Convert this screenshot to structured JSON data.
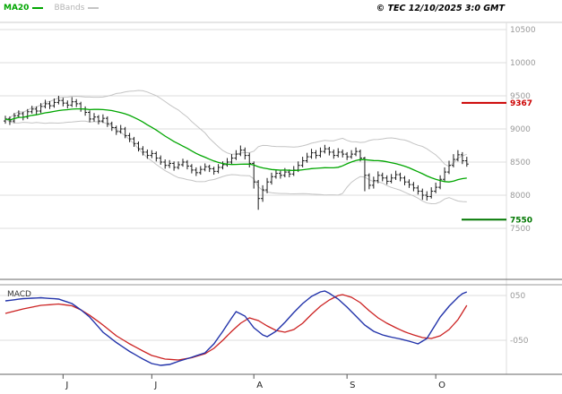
{
  "header": {
    "ma20_label": "MA20",
    "bbands_label": "BBands",
    "copyright": "© TEC 12/10/2025 3:0 GMT"
  },
  "colors": {
    "grid": "#dcdcdc",
    "axis_text": "#999999",
    "bars": "#1a1a1a",
    "ma20": "#00a600",
    "bands": "#c4c4c4",
    "macd_line": "#2233aa",
    "macd_signal": "#cc2222",
    "resistance": "#cc0000",
    "support": "#007700",
    "panel_border": "#666666"
  },
  "price_axis": {
    "levels": [
      {
        "value": 10500,
        "label": "10500"
      },
      {
        "value": 10000,
        "label": "10000"
      },
      {
        "value": 9500,
        "label": "9500"
      },
      {
        "value": 9000,
        "label": "9000"
      },
      {
        "value": 8500,
        "label": "8500"
      },
      {
        "value": 8000,
        "label": "8000"
      },
      {
        "value": 7500,
        "label": "7500"
      }
    ],
    "markers": [
      {
        "name": "resistance",
        "value": 9367,
        "label": "9367",
        "color": "#cc0000"
      },
      {
        "name": "support",
        "value": 7550,
        "label": "7550",
        "color": "#007700"
      }
    ]
  },
  "macd_panel": {
    "label": "MACD",
    "levels": [
      {
        "value": 0.5,
        "label": "050"
      },
      {
        "value": -0.5,
        "label": "-050"
      }
    ]
  },
  "x_axis": {
    "ticks": [
      {
        "index": 13,
        "label": "J"
      },
      {
        "index": 33,
        "label": "J"
      },
      {
        "index": 56,
        "label": "A"
      },
      {
        "index": 77,
        "label": "S"
      },
      {
        "index": 97,
        "label": "O"
      }
    ]
  },
  "chart_data": {
    "type": "candlestick",
    "title": "",
    "legend": [
      "MA20",
      "BBands"
    ],
    "x_tick_labels": [
      "J",
      "J",
      "A",
      "S",
      "O"
    ],
    "y_tick_labels": [
      "10500",
      "10000",
      "9500",
      "9000",
      "8500",
      "8000",
      "7500"
    ],
    "ylim": [
      7500,
      10500
    ],
    "resistance_level": 9367,
    "support_level": 7550,
    "indicators": {
      "ma20_period": 20,
      "bbands_period": 20,
      "bbands_stddev": 2
    },
    "ohlc": [
      [
        9120,
        9200,
        9080,
        9150
      ],
      [
        9150,
        9190,
        9060,
        9120
      ],
      [
        9120,
        9240,
        9090,
        9200
      ],
      [
        9200,
        9280,
        9170,
        9230
      ],
      [
        9230,
        9260,
        9130,
        9180
      ],
      [
        9180,
        9300,
        9150,
        9260
      ],
      [
        9260,
        9350,
        9230,
        9300
      ],
      [
        9300,
        9340,
        9220,
        9270
      ],
      [
        9270,
        9390,
        9240,
        9340
      ],
      [
        9340,
        9440,
        9310,
        9380
      ],
      [
        9380,
        9420,
        9300,
        9350
      ],
      [
        9350,
        9460,
        9320,
        9400
      ],
      [
        9400,
        9500,
        9370,
        9430
      ],
      [
        9430,
        9470,
        9340,
        9390
      ],
      [
        9390,
        9430,
        9310,
        9360
      ],
      [
        9360,
        9480,
        9330,
        9410
      ],
      [
        9410,
        9450,
        9330,
        9380
      ],
      [
        9380,
        9410,
        9260,
        9300
      ],
      [
        9300,
        9340,
        9200,
        9250
      ],
      [
        9250,
        9280,
        9100,
        9150
      ],
      [
        9150,
        9240,
        9110,
        9180
      ],
      [
        9180,
        9210,
        9070,
        9120
      ],
      [
        9120,
        9220,
        9090,
        9160
      ],
      [
        9160,
        9190,
        9030,
        9080
      ],
      [
        9080,
        9110,
        8970,
        9020
      ],
      [
        9020,
        9050,
        8910,
        8960
      ],
      [
        8960,
        9060,
        8930,
        9000
      ],
      [
        9000,
        9030,
        8860,
        8900
      ],
      [
        8900,
        8940,
        8800,
        8850
      ],
      [
        8850,
        8880,
        8730,
        8780
      ],
      [
        8780,
        8810,
        8660,
        8700
      ],
      [
        8700,
        8740,
        8600,
        8650
      ],
      [
        8650,
        8690,
        8550,
        8600
      ],
      [
        8600,
        8680,
        8560,
        8630
      ],
      [
        8630,
        8660,
        8510,
        8560
      ],
      [
        8560,
        8600,
        8460,
        8500
      ],
      [
        8500,
        8540,
        8400,
        8450
      ],
      [
        8450,
        8530,
        8410,
        8480
      ],
      [
        8480,
        8510,
        8370,
        8420
      ],
      [
        8420,
        8510,
        8390,
        8460
      ],
      [
        8460,
        8550,
        8430,
        8500
      ],
      [
        8500,
        8530,
        8390,
        8440
      ],
      [
        8440,
        8470,
        8330,
        8380
      ],
      [
        8380,
        8420,
        8290,
        8340
      ],
      [
        8340,
        8440,
        8310,
        8390
      ],
      [
        8390,
        8480,
        8360,
        8430
      ],
      [
        8430,
        8460,
        8350,
        8400
      ],
      [
        8400,
        8430,
        8310,
        8360
      ],
      [
        8360,
        8470,
        8330,
        8420
      ],
      [
        8420,
        8510,
        8390,
        8460
      ],
      [
        8460,
        8560,
        8430,
        8500
      ],
      [
        8500,
        8620,
        8470,
        8560
      ],
      [
        8560,
        8680,
        8530,
        8620
      ],
      [
        8620,
        8750,
        8590,
        8680
      ],
      [
        8680,
        8720,
        8540,
        8600
      ],
      [
        8600,
        8640,
        8420,
        8480
      ],
      [
        8480,
        8510,
        8100,
        8200
      ],
      [
        8200,
        8230,
        7780,
        7950
      ],
      [
        7950,
        8150,
        7900,
        8080
      ],
      [
        8080,
        8260,
        8030,
        8200
      ],
      [
        8200,
        8340,
        8160,
        8280
      ],
      [
        8280,
        8390,
        8250,
        8330
      ],
      [
        8330,
        8370,
        8250,
        8300
      ],
      [
        8300,
        8410,
        8270,
        8350
      ],
      [
        8350,
        8390,
        8270,
        8320
      ],
      [
        8320,
        8440,
        8290,
        8380
      ],
      [
        8380,
        8510,
        8350,
        8450
      ],
      [
        8450,
        8580,
        8420,
        8520
      ],
      [
        8520,
        8640,
        8490,
        8580
      ],
      [
        8580,
        8700,
        8550,
        8640
      ],
      [
        8640,
        8680,
        8550,
        8600
      ],
      [
        8600,
        8720,
        8570,
        8660
      ],
      [
        8660,
        8760,
        8630,
        8700
      ],
      [
        8700,
        8730,
        8600,
        8650
      ],
      [
        8650,
        8690,
        8550,
        8600
      ],
      [
        8600,
        8710,
        8570,
        8650
      ],
      [
        8650,
        8690,
        8570,
        8620
      ],
      [
        8620,
        8650,
        8530,
        8580
      ],
      [
        8580,
        8680,
        8550,
        8620
      ],
      [
        8620,
        8720,
        8590,
        8660
      ],
      [
        8660,
        8690,
        8510,
        8560
      ],
      [
        8560,
        8580,
        8060,
        8300
      ],
      [
        8300,
        8330,
        8090,
        8150
      ],
      [
        8150,
        8280,
        8100,
        8220
      ],
      [
        8220,
        8360,
        8180,
        8300
      ],
      [
        8300,
        8340,
        8210,
        8260
      ],
      [
        8260,
        8300,
        8160,
        8210
      ],
      [
        8210,
        8320,
        8180,
        8260
      ],
      [
        8260,
        8370,
        8230,
        8310
      ],
      [
        8310,
        8340,
        8210,
        8260
      ],
      [
        8260,
        8290,
        8150,
        8200
      ],
      [
        8200,
        8240,
        8110,
        8160
      ],
      [
        8160,
        8200,
        8060,
        8110
      ],
      [
        8110,
        8150,
        8010,
        8060
      ],
      [
        8060,
        8100,
        7930,
        8000
      ],
      [
        8000,
        8060,
        7920,
        7980
      ],
      [
        7980,
        8120,
        7950,
        8060
      ],
      [
        8060,
        8190,
        8030,
        8120
      ],
      [
        8120,
        8300,
        8090,
        8240
      ],
      [
        8240,
        8420,
        8210,
        8350
      ],
      [
        8350,
        8520,
        8320,
        8450
      ],
      [
        8450,
        8620,
        8420,
        8540
      ],
      [
        8540,
        8680,
        8510,
        8610
      ],
      [
        8610,
        8650,
        8470,
        8520
      ],
      [
        8520,
        8580,
        8430,
        8470
      ]
    ],
    "macd": {
      "ylim": [
        -1.3,
        0.8
      ],
      "gridlines": [
        0.5,
        -0.5
      ],
      "line_keypoints": [
        [
          0,
          0.38
        ],
        [
          4,
          0.43
        ],
        [
          8,
          0.45
        ],
        [
          12,
          0.42
        ],
        [
          15,
          0.32
        ],
        [
          17,
          0.18
        ],
        [
          19,
          0.02
        ],
        [
          22,
          -0.32
        ],
        [
          25,
          -0.55
        ],
        [
          28,
          -0.75
        ],
        [
          31,
          -0.92
        ],
        [
          33,
          -1.02
        ],
        [
          35,
          -1.06
        ],
        [
          37,
          -1.04
        ],
        [
          39,
          -0.97
        ],
        [
          42,
          -0.88
        ],
        [
          45,
          -0.78
        ],
        [
          47,
          -0.58
        ],
        [
          49,
          -0.3
        ],
        [
          51,
          0.0
        ],
        [
          52,
          0.14
        ],
        [
          54,
          0.04
        ],
        [
          56,
          -0.22
        ],
        [
          58,
          -0.38
        ],
        [
          59,
          -0.42
        ],
        [
          61,
          -0.3
        ],
        [
          63,
          -0.1
        ],
        [
          65,
          0.12
        ],
        [
          67,
          0.32
        ],
        [
          69,
          0.48
        ],
        [
          71,
          0.58
        ],
        [
          72,
          0.6
        ],
        [
          73,
          0.55
        ],
        [
          75,
          0.42
        ],
        [
          77,
          0.24
        ],
        [
          79,
          0.04
        ],
        [
          81,
          -0.16
        ],
        [
          83,
          -0.3
        ],
        [
          85,
          -0.38
        ],
        [
          87,
          -0.43
        ],
        [
          89,
          -0.47
        ],
        [
          91,
          -0.52
        ],
        [
          93,
          -0.58
        ],
        [
          95,
          -0.46
        ],
        [
          96,
          -0.3
        ],
        [
          97,
          -0.14
        ],
        [
          98,
          0.02
        ],
        [
          100,
          0.26
        ],
        [
          102,
          0.46
        ],
        [
          103,
          0.54
        ],
        [
          104,
          0.58
        ]
      ],
      "signal_keypoints": [
        [
          0,
          0.1
        ],
        [
          4,
          0.2
        ],
        [
          8,
          0.28
        ],
        [
          12,
          0.31
        ],
        [
          15,
          0.27
        ],
        [
          17,
          0.18
        ],
        [
          19,
          0.06
        ],
        [
          22,
          -0.16
        ],
        [
          25,
          -0.4
        ],
        [
          28,
          -0.58
        ],
        [
          31,
          -0.74
        ],
        [
          33,
          -0.84
        ],
        [
          36,
          -0.92
        ],
        [
          39,
          -0.94
        ],
        [
          42,
          -0.89
        ],
        [
          45,
          -0.8
        ],
        [
          47,
          -0.68
        ],
        [
          49,
          -0.5
        ],
        [
          51,
          -0.3
        ],
        [
          53,
          -0.12
        ],
        [
          55,
          0.0
        ],
        [
          57,
          -0.06
        ],
        [
          59,
          -0.18
        ],
        [
          61,
          -0.28
        ],
        [
          63,
          -0.32
        ],
        [
          65,
          -0.26
        ],
        [
          67,
          -0.12
        ],
        [
          69,
          0.08
        ],
        [
          71,
          0.26
        ],
        [
          73,
          0.4
        ],
        [
          75,
          0.5
        ],
        [
          76,
          0.52
        ],
        [
          78,
          0.46
        ],
        [
          80,
          0.34
        ],
        [
          82,
          0.16
        ],
        [
          84,
          0.0
        ],
        [
          86,
          -0.12
        ],
        [
          88,
          -0.22
        ],
        [
          90,
          -0.31
        ],
        [
          92,
          -0.38
        ],
        [
          94,
          -0.44
        ],
        [
          96,
          -0.46
        ],
        [
          98,
          -0.4
        ],
        [
          100,
          -0.26
        ],
        [
          102,
          -0.04
        ],
        [
          104,
          0.28
        ]
      ]
    }
  }
}
